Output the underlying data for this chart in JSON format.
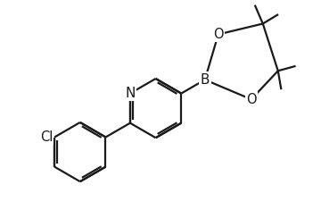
{
  "background_color": "#ffffff",
  "line_color": "#1a1a1a",
  "line_width": 1.6,
  "font_size": 10.5,
  "xlim": [
    0,
    10
  ],
  "ylim": [
    0,
    6.5
  ]
}
